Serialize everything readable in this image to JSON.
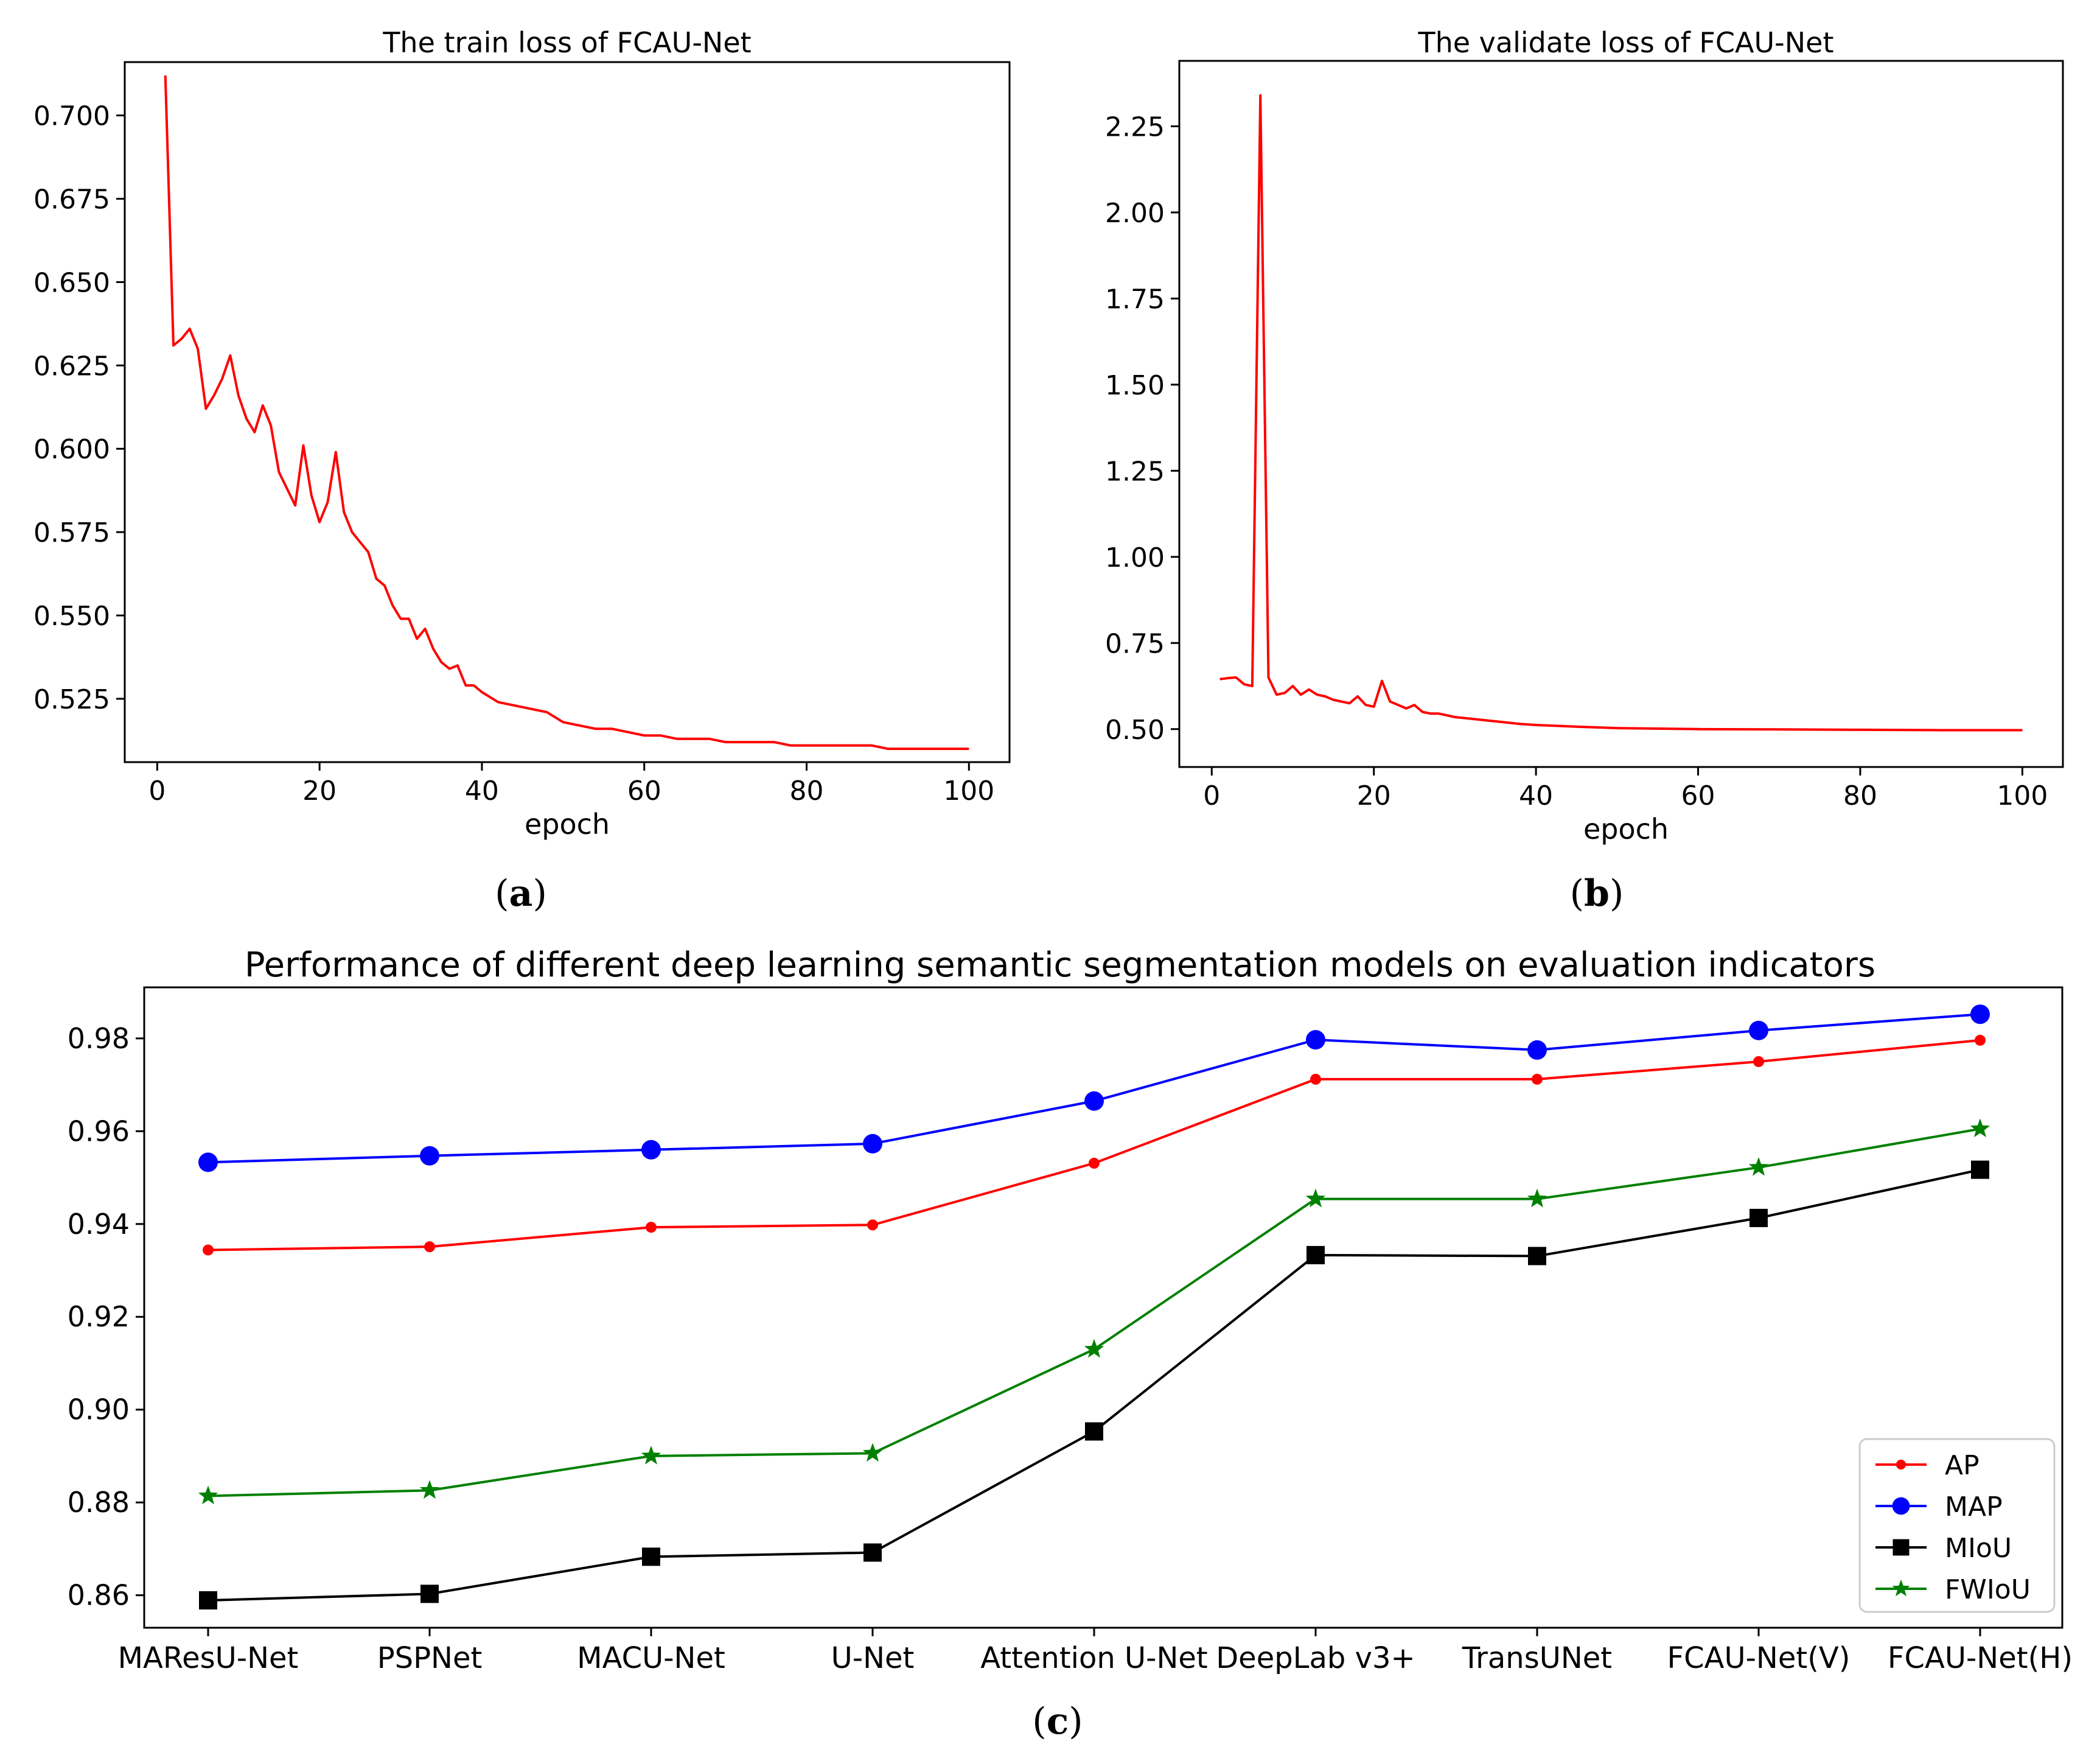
{
  "figure": {
    "caption_a": "(a)",
    "caption_b": "(b)",
    "caption_c": "(c)"
  },
  "chart_data": [
    {
      "id": "a",
      "type": "line",
      "title": "The train loss of FCAU-Net",
      "xlabel": "epoch",
      "ylabel": "",
      "xlim": [
        -4,
        105
      ],
      "ylim": [
        0.506,
        0.716
      ],
      "xticks": [
        0,
        20,
        40,
        60,
        80,
        100
      ],
      "xtick_labels": [
        "0",
        "20",
        "40",
        "60",
        "80",
        "100"
      ],
      "yticks": [
        0.525,
        0.55,
        0.575,
        0.6,
        0.625,
        0.65,
        0.675,
        0.7
      ],
      "ytick_labels": [
        "0.525",
        "0.550",
        "0.575",
        "0.600",
        "0.625",
        "0.650",
        "0.675",
        "0.700"
      ],
      "color": "#ff0000",
      "series": [
        {
          "name": "train loss",
          "x": [
            1,
            2,
            3,
            4,
            5,
            6,
            7,
            8,
            9,
            10,
            11,
            12,
            13,
            14,
            15,
            16,
            17,
            18,
            19,
            20,
            21,
            22,
            23,
            24,
            25,
            26,
            27,
            28,
            29,
            30,
            31,
            32,
            33,
            34,
            35,
            36,
            37,
            38,
            39,
            40,
            42,
            44,
            46,
            48,
            50,
            52,
            54,
            56,
            58,
            60,
            62,
            64,
            66,
            68,
            70,
            72,
            74,
            76,
            78,
            80,
            82,
            84,
            86,
            88,
            90,
            92,
            94,
            96,
            98,
            100
          ],
          "values": [
            0.712,
            0.631,
            0.633,
            0.636,
            0.63,
            0.612,
            0.616,
            0.621,
            0.628,
            0.616,
            0.609,
            0.605,
            0.613,
            0.607,
            0.593,
            0.588,
            0.583,
            0.601,
            0.586,
            0.578,
            0.584,
            0.599,
            0.581,
            0.575,
            0.572,
            0.569,
            0.561,
            0.559,
            0.553,
            0.549,
            0.549,
            0.543,
            0.546,
            0.54,
            0.536,
            0.534,
            0.535,
            0.529,
            0.529,
            0.527,
            0.524,
            0.523,
            0.522,
            0.521,
            0.518,
            0.517,
            0.516,
            0.516,
            0.515,
            0.514,
            0.514,
            0.513,
            0.513,
            0.513,
            0.512,
            0.512,
            0.512,
            0.512,
            0.511,
            0.511,
            0.511,
            0.511,
            0.511,
            0.511,
            0.51,
            0.51,
            0.51,
            0.51,
            0.51,
            0.51
          ]
        }
      ]
    },
    {
      "id": "b",
      "type": "line",
      "title": "The validate loss of FCAU-Net",
      "xlabel": "epoch",
      "ylabel": "",
      "xlim": [
        -4,
        105
      ],
      "ylim": [
        0.39,
        2.44
      ],
      "xticks": [
        0,
        20,
        40,
        60,
        80,
        100
      ],
      "xtick_labels": [
        "0",
        "20",
        "40",
        "60",
        "80",
        "100"
      ],
      "yticks": [
        0.5,
        0.75,
        1.0,
        1.25,
        1.5,
        1.75,
        2.0,
        2.25
      ],
      "ytick_labels": [
        "0.50",
        "0.75",
        "1.00",
        "1.25",
        "1.50",
        "1.75",
        "2.00",
        "2.25"
      ],
      "color": "#ff0000",
      "series": [
        {
          "name": "validate loss",
          "x": [
            1,
            2,
            3,
            4,
            5,
            6,
            7,
            8,
            9,
            10,
            11,
            12,
            13,
            14,
            15,
            16,
            17,
            18,
            19,
            20,
            21,
            22,
            23,
            24,
            25,
            26,
            27,
            28,
            29,
            30,
            32,
            34,
            36,
            38,
            40,
            45,
            50,
            60,
            70,
            80,
            90,
            100
          ],
          "values": [
            0.645,
            0.648,
            0.65,
            0.63,
            0.625,
            2.34,
            0.65,
            0.6,
            0.605,
            0.625,
            0.6,
            0.615,
            0.6,
            0.595,
            0.585,
            0.58,
            0.575,
            0.595,
            0.57,
            0.565,
            0.64,
            0.58,
            0.57,
            0.56,
            0.57,
            0.55,
            0.545,
            0.545,
            0.54,
            0.535,
            0.53,
            0.525,
            0.52,
            0.515,
            0.512,
            0.507,
            0.503,
            0.5,
            0.499,
            0.498,
            0.497,
            0.497
          ]
        }
      ]
    },
    {
      "id": "c",
      "type": "line",
      "title": "Performance of different deep learning semantic segmentation models on evaluation indicators",
      "xlabel": "",
      "ylabel": "",
      "categories": [
        "MAResU-Net",
        "PSPNet",
        "MACU-Net",
        "U-Net",
        "Attention U-Net",
        "DeepLab v3+",
        "TransUNet",
        "FCAU-Net(V)",
        "FCAU-Net(H)"
      ],
      "ylim": [
        0.853,
        0.991
      ],
      "yticks": [
        0.86,
        0.88,
        0.9,
        0.92,
        0.94,
        0.96,
        0.98
      ],
      "ytick_labels": [
        "0.86",
        "0.88",
        "0.90",
        "0.92",
        "0.94",
        "0.96",
        "0.98"
      ],
      "legend_position": "lower-right",
      "series": [
        {
          "name": "AP",
          "color": "#ff0000",
          "marker": "dot",
          "values": [
            0.9344,
            0.9351,
            0.9393,
            0.9398,
            0.9531,
            0.9712,
            0.9712,
            0.975,
            0.9796
          ]
        },
        {
          "name": "MAP",
          "color": "#0000ff",
          "marker": "circle",
          "values": [
            0.9533,
            0.9547,
            0.956,
            0.9573,
            0.9665,
            0.9797,
            0.9775,
            0.9817,
            0.9852
          ]
        },
        {
          "name": "MIoU",
          "color": "#000000",
          "marker": "square",
          "values": [
            0.8589,
            0.8603,
            0.8683,
            0.8692,
            0.8953,
            0.9333,
            0.9331,
            0.9413,
            0.9517
          ]
        },
        {
          "name": "FWIoU",
          "color": "#008000",
          "marker": "star",
          "values": [
            0.8814,
            0.8826,
            0.89,
            0.8906,
            0.913,
            0.9454,
            0.9454,
            0.9522,
            0.9605
          ]
        }
      ]
    }
  ]
}
